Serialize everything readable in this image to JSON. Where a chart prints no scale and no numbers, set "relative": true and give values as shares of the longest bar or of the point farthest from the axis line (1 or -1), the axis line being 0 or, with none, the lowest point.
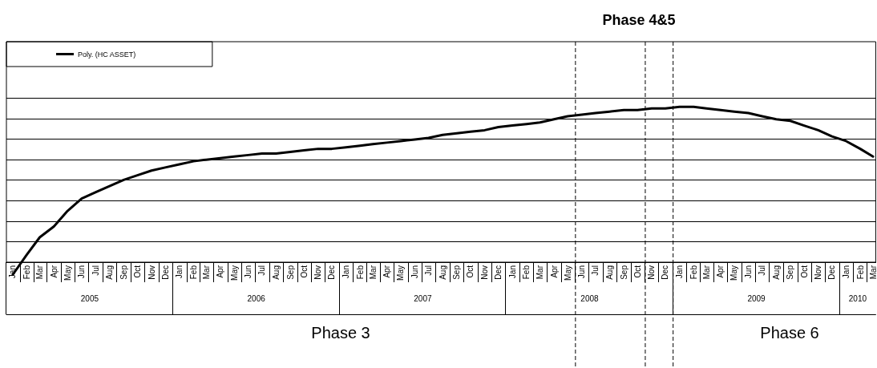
{
  "chart_data": {
    "type": "line",
    "relative": true,
    "grid": "y",
    "legend": "top left",
    "marker": "none",
    "line_style": "solid",
    "x": [
      "2005-01-15",
      "2005-02-15",
      "2005-03-15",
      "2005-04-15",
      "2005-05-15",
      "2005-06-15",
      "2005-07-15",
      "2005-08-15",
      "2005-09-15",
      "2005-10-15",
      "2005-11-15",
      "2005-12-15",
      "2006-01-15",
      "2006-02-15",
      "2006-03-15",
      "2006-04-15",
      "2006-05-15",
      "2006-06-15",
      "2006-07-15",
      "2006-08-15",
      "2006-09-15",
      "2006-10-15",
      "2006-11-15",
      "2006-12-15",
      "2007-01-15",
      "2007-02-15",
      "2007-03-15",
      "2007-04-15",
      "2007-05-15",
      "2007-06-15",
      "2007-07-15",
      "2007-08-15",
      "2007-09-15",
      "2007-10-15",
      "2007-11-15",
      "2007-12-15",
      "2008-01-15",
      "2008-02-15",
      "2008-03-15",
      "2008-04-15",
      "2008-05-15",
      "2008-06-15",
      "2008-07-15",
      "2008-08-15",
      "2008-09-15",
      "2008-10-15",
      "2008-11-15",
      "2008-12-15",
      "2009-01-15",
      "2009-02-15",
      "2009-03-15",
      "2009-04-15",
      "2009-05-15",
      "2009-06-15",
      "2009-07-15",
      "2009-08-15",
      "2009-09-15",
      "2009-10-15",
      "2009-11-15",
      "2009-12-15",
      "2010-01-15",
      "2010-02-15",
      "2010-03-15"
    ],
    "xlim": [
      "2005-01-01",
      "2010-03-21"
    ],
    "xticks": [
      {
        "value": "2005-01-15",
        "label": "Jan"
      },
      {
        "value": "2005-02-15",
        "label": "Feb"
      },
      {
        "value": "2005-03-15",
        "label": "Mar"
      },
      {
        "value": "2005-04-15",
        "label": "Apr"
      },
      {
        "value": "2005-05-15",
        "label": "May"
      },
      {
        "value": "2005-06-15",
        "label": "Jun"
      },
      {
        "value": "2005-07-15",
        "label": "Jul"
      },
      {
        "value": "2005-08-15",
        "label": "Aug"
      },
      {
        "value": "2005-09-15",
        "label": "Sep"
      },
      {
        "value": "2005-10-15",
        "label": "Oct"
      },
      {
        "value": "2005-11-15",
        "label": "Nov"
      },
      {
        "value": "2005-12-15",
        "label": "Dec"
      },
      {
        "value": "2006-01-15",
        "label": "Jan"
      },
      {
        "value": "2006-02-15",
        "label": "Feb"
      },
      {
        "value": "2006-03-15",
        "label": "Mar"
      },
      {
        "value": "2006-04-15",
        "label": "Apr"
      },
      {
        "value": "2006-05-15",
        "label": "May"
      },
      {
        "value": "2006-06-15",
        "label": "Jun"
      },
      {
        "value": "2006-07-15",
        "label": "Jul"
      },
      {
        "value": "2006-08-15",
        "label": "Aug"
      },
      {
        "value": "2006-09-15",
        "label": "Sep"
      },
      {
        "value": "2006-10-15",
        "label": "Oct"
      },
      {
        "value": "2006-11-15",
        "label": "Nov"
      },
      {
        "value": "2006-12-15",
        "label": "Dec"
      },
      {
        "value": "2007-01-15",
        "label": "Jan"
      },
      {
        "value": "2007-02-15",
        "label": "Feb"
      },
      {
        "value": "2007-03-15",
        "label": "Mar"
      },
      {
        "value": "2007-04-15",
        "label": "Apr"
      },
      {
        "value": "2007-05-15",
        "label": "May"
      },
      {
        "value": "2007-06-15",
        "label": "Jun"
      },
      {
        "value": "2007-07-15",
        "label": "Jul"
      },
      {
        "value": "2007-08-15",
        "label": "Aug"
      },
      {
        "value": "2007-09-15",
        "label": "Sep"
      },
      {
        "value": "2007-10-15",
        "label": "Oct"
      },
      {
        "value": "2007-11-15",
        "label": "Nov"
      },
      {
        "value": "2007-12-15",
        "label": "Dec"
      },
      {
        "value": "2008-01-15",
        "label": "Jan"
      },
      {
        "value": "2008-02-15",
        "label": "Feb"
      },
      {
        "value": "2008-03-15",
        "label": "Mar"
      },
      {
        "value": "2008-04-15",
        "label": "Apr"
      },
      {
        "value": "2008-05-15",
        "label": "May"
      },
      {
        "value": "2008-06-15",
        "label": "Jun"
      },
      {
        "value": "2008-07-15",
        "label": "Jul"
      },
      {
        "value": "2008-08-15",
        "label": "Aug"
      },
      {
        "value": "2008-09-15",
        "label": "Sep"
      },
      {
        "value": "2008-10-15",
        "label": "Oct"
      },
      {
        "value": "2008-11-15",
        "label": "Nov"
      },
      {
        "value": "2008-12-15",
        "label": "Dec"
      },
      {
        "value": "2009-01-15",
        "label": "Jan"
      },
      {
        "value": "2009-02-15",
        "label": "Feb"
      },
      {
        "value": "2009-03-15",
        "label": "Mar"
      },
      {
        "value": "2009-04-15",
        "label": "Apr"
      },
      {
        "value": "2009-05-15",
        "label": "May"
      },
      {
        "value": "2009-06-15",
        "label": "Jun"
      },
      {
        "value": "2009-07-15",
        "label": "Jul"
      },
      {
        "value": "2009-08-15",
        "label": "Aug"
      },
      {
        "value": "2009-09-15",
        "label": "Sep"
      },
      {
        "value": "2009-10-15",
        "label": "Oct"
      },
      {
        "value": "2009-11-15",
        "label": "Nov"
      },
      {
        "value": "2009-12-15",
        "label": "Dec"
      },
      {
        "value": "2010-01-15",
        "label": "Jan"
      },
      {
        "value": "2010-02-15",
        "label": "Feb"
      },
      {
        "value": "2010-03-15",
        "label": "Mar"
      }
    ],
    "series": [
      {
        "name": "Poly. (HC ASSET)",
        "color": "#000000",
        "values": [
          -0.08,
          0.05,
          0.16,
          0.23,
          0.33,
          0.41,
          0.45,
          0.49,
          0.53,
          0.56,
          0.59,
          0.61,
          0.63,
          0.65,
          0.66,
          0.67,
          0.68,
          0.69,
          0.7,
          0.7,
          0.71,
          0.72,
          0.73,
          0.73,
          0.74,
          0.75,
          0.76,
          0.77,
          0.78,
          0.79,
          0.8,
          0.82,
          0.83,
          0.84,
          0.85,
          0.87,
          0.88,
          0.89,
          0.9,
          0.92,
          0.94,
          0.95,
          0.96,
          0.97,
          0.98,
          0.98,
          0.99,
          0.99,
          1.0,
          1.0,
          0.99,
          0.98,
          0.97,
          0.96,
          0.94,
          0.92,
          0.91,
          0.88,
          0.85,
          0.81,
          0.78,
          0.73,
          0.68
        ]
      }
    ],
    "ref_lines": [
      {
        "axis": "x",
        "value": "2008-06",
        "line_style": "dashed",
        "color": "#000000"
      },
      {
        "axis": "x",
        "value": "2008-11",
        "line_style": "dashed",
        "color": "#000000"
      },
      {
        "axis": "x",
        "value": "2009-01",
        "line_style": "dashed",
        "color": "#000000"
      }
    ],
    "annotations": [
      "2005",
      "2006",
      "2007",
      "2008",
      "2009",
      "2010",
      "Phase 4&5",
      "Phase 3",
      "Phase 6"
    ]
  }
}
